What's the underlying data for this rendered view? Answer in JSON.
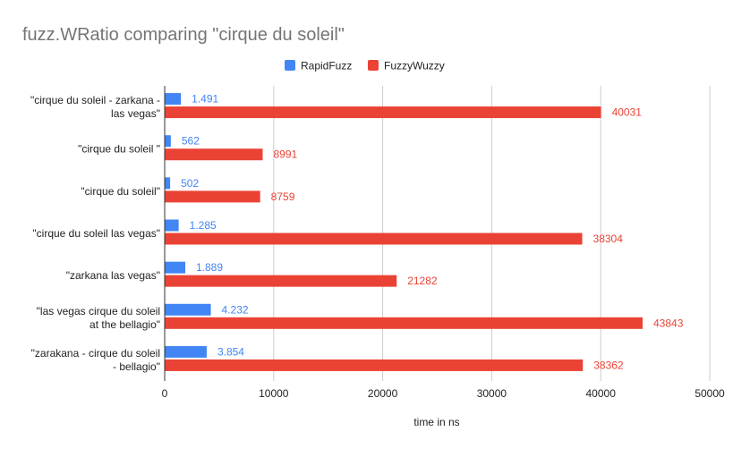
{
  "chart_data": {
    "type": "bar",
    "orientation": "horizontal",
    "title": "fuzz.WRatio comparing \"cirque du soleil\"",
    "xlabel": "time in ns",
    "ylabel": "",
    "xlim": [
      0,
      50000
    ],
    "x_ticks": [
      "0",
      "10000",
      "20000",
      "30000",
      "40000",
      "50000"
    ],
    "grid": true,
    "legend_position": "top",
    "categories": [
      [
        "\"cirque du soleil - zarkana -",
        "las vegas\""
      ],
      [
        "\"cirque du soleil \""
      ],
      [
        "\"cirque du soleil\""
      ],
      [
        "\"cirque du soleil las vegas\""
      ],
      [
        "\"zarkana las vegas\""
      ],
      [
        "\"las vegas cirque du soleil",
        "at the bellagio\""
      ],
      [
        "\"zarakana - cirque du soleil",
        "- bellagio\""
      ]
    ],
    "series": [
      {
        "name": "RapidFuzz",
        "color": "#4285f4",
        "values": [
          1491,
          562,
          502,
          1285,
          1889,
          4232,
          3854
        ],
        "labels": [
          "1.491",
          "562",
          "502",
          "1.285",
          "1.889",
          "4.232",
          "3.854"
        ]
      },
      {
        "name": "FuzzyWuzzy",
        "color": "#ea4335",
        "values": [
          40031,
          8991,
          8759,
          38304,
          21282,
          43843,
          38362
        ],
        "labels": [
          "40031",
          "8991",
          "8759",
          "38304",
          "21282",
          "43843",
          "38362"
        ]
      }
    ]
  }
}
